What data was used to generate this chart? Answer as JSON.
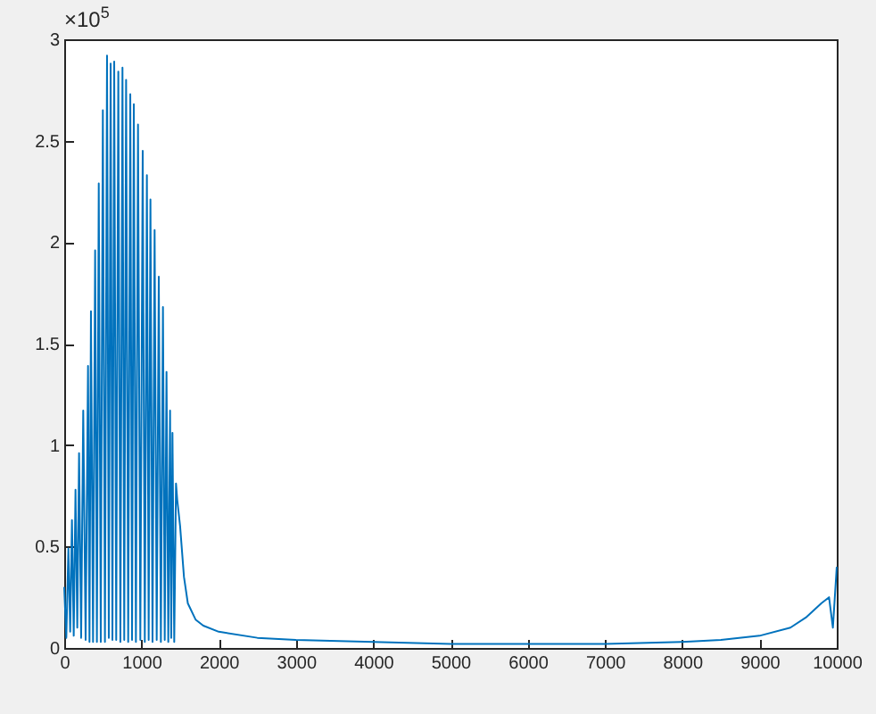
{
  "chart_data": {
    "type": "line",
    "annotations": [
      "×10$^{5}$"
    ],
    "x": [
      0,
      27,
      54,
      77,
      100,
      123,
      146,
      169,
      192,
      219,
      246,
      277,
      308,
      327,
      346,
      373,
      400,
      423,
      447,
      473,
      500,
      527,
      554,
      577,
      601,
      624,
      647,
      673,
      700,
      727,
      754,
      777,
      801,
      828,
      855,
      878,
      901,
      928,
      955,
      985,
      1016,
      1043,
      1070,
      1093,
      1116,
      1143,
      1170,
      1197,
      1224,
      1251,
      1278,
      1301,
      1324,
      1347,
      1370,
      1385,
      1401,
      1424,
      1447,
      1463,
      1500,
      1550,
      1600,
      1700,
      1800,
      2000,
      2500,
      3000,
      4000,
      5000,
      6000,
      7000,
      8000,
      8500,
      9000,
      9400,
      9600,
      9800,
      9900,
      9950,
      10000
    ],
    "series": [
      {
        "color": "#0072bd",
        "values": [
          0.3,
          0.05,
          0.49,
          0.08,
          0.63,
          0.06,
          0.78,
          0.1,
          0.96,
          0.05,
          1.17,
          0.04,
          1.39,
          0.03,
          1.66,
          0.03,
          1.96,
          0.03,
          2.29,
          0.03,
          2.65,
          0.03,
          2.92,
          0.05,
          2.88,
          0.04,
          2.89,
          0.04,
          2.84,
          0.03,
          2.86,
          0.04,
          2.8,
          0.03,
          2.73,
          0.04,
          2.68,
          0.03,
          2.58,
          0.04,
          2.45,
          0.03,
          2.33,
          0.04,
          2.21,
          0.03,
          2.06,
          0.04,
          1.83,
          0.03,
          1.68,
          0.04,
          1.36,
          0.03,
          1.17,
          0.05,
          1.06,
          0.03,
          0.81,
          0.73,
          0.6,
          0.35,
          0.22,
          0.14,
          0.11,
          0.08,
          0.05,
          0.04,
          0.03,
          0.02,
          0.02,
          0.02,
          0.03,
          0.04,
          0.06,
          0.1,
          0.15,
          0.22,
          0.25,
          0.1,
          0.4
        ]
      }
    ],
    "xlim": [
      0,
      10000
    ],
    "xticks": [
      0,
      1000,
      2000,
      3000,
      4000,
      5000,
      6000,
      7000,
      8000,
      9000,
      10000
    ],
    "ylim": [
      0,
      3
    ],
    "yticks": [
      0,
      0.5,
      1,
      1.5,
      2,
      2.5,
      3
    ]
  }
}
